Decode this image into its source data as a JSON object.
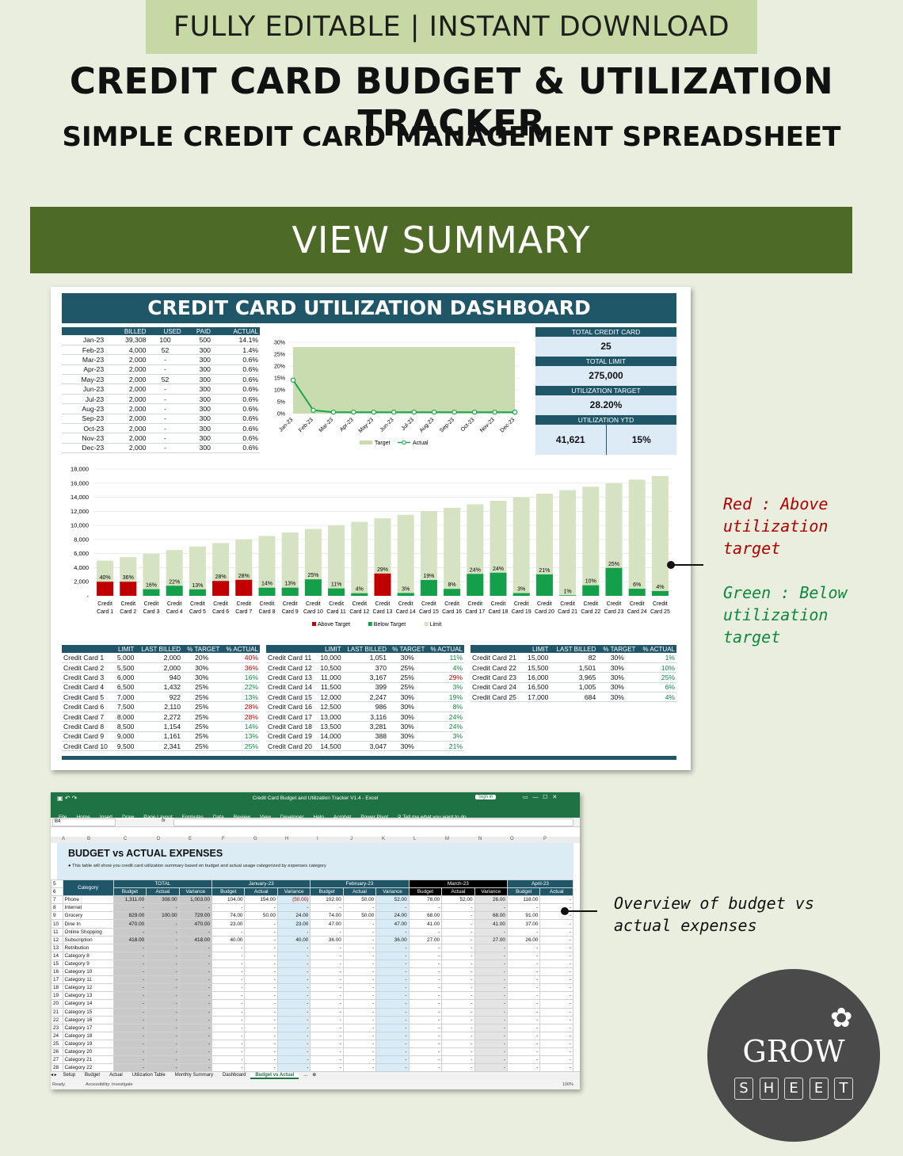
{
  "banner": {
    "top": "FULLY EDITABLE | INSTANT DOWNLOAD",
    "title": "CREDIT CARD BUDGET & UTILIZATION TRACKER",
    "subtitle": "SIMPLE CREDIT CARD MANAGEMENT SPREADSHEET",
    "section": "VIEW SUMMARY"
  },
  "dashboard": {
    "title": "CREDIT CARD UTILIZATION DASHBOARD",
    "monthly_headers": [
      "",
      "BILLED",
      "USED",
      "PAID",
      "ACTUAL"
    ],
    "monthly": [
      [
        "Jan-23",
        "39,308",
        "100",
        "500",
        "14.1%"
      ],
      [
        "Feb-23",
        "4,000",
        "52",
        "300",
        "1.4%"
      ],
      [
        "Mar-23",
        "2,000",
        "-",
        "300",
        "0.6%"
      ],
      [
        "Apr-23",
        "2,000",
        "-",
        "300",
        "0.6%"
      ],
      [
        "May-23",
        "2,000",
        "52",
        "300",
        "0.6%"
      ],
      [
        "Jun-23",
        "2,000",
        "-",
        "300",
        "0.6%"
      ],
      [
        "Jul-23",
        "2,000",
        "-",
        "300",
        "0.6%"
      ],
      [
        "Aug-23",
        "2,000",
        "-",
        "300",
        "0.6%"
      ],
      [
        "Sep-23",
        "2,000",
        "-",
        "300",
        "0.6%"
      ],
      [
        "Oct-23",
        "2,000",
        "-",
        "300",
        "0.6%"
      ],
      [
        "Nov-23",
        "2,000",
        "-",
        "300",
        "0.6%"
      ],
      [
        "Dec-23",
        "2,000",
        "-",
        "300",
        "0.6%"
      ]
    ],
    "kpi": {
      "total_card_label": "TOTAL CREDIT CARD",
      "total_card": "25",
      "total_limit_label": "TOTAL LIMIT",
      "total_limit": "275,000",
      "target_label": "UTILIZATION TARGET",
      "target": "28.20%",
      "ytd_label": "UTILIZATION YTD",
      "ytd_amount": "41,621",
      "ytd_pct": "15%"
    },
    "card_headers": [
      "",
      "LIMIT",
      "LAST BILLED",
      "% TARGET",
      "% ACTUAL"
    ],
    "cards": [
      [
        "Credit Card 1",
        "5,000",
        "2,000",
        "20%",
        "40%",
        "red"
      ],
      [
        "Credit Card 2",
        "5,500",
        "2,000",
        "30%",
        "36%",
        "red"
      ],
      [
        "Credit Card 3",
        "6,000",
        "940",
        "30%",
        "16%",
        "green"
      ],
      [
        "Credit Card 4",
        "6,500",
        "1,432",
        "25%",
        "22%",
        "green"
      ],
      [
        "Credit Card 5",
        "7,000",
        "922",
        "25%",
        "13%",
        "green"
      ],
      [
        "Credit Card 6",
        "7,500",
        "2,110",
        "25%",
        "28%",
        "red"
      ],
      [
        "Credit Card 7",
        "8,000",
        "2,272",
        "25%",
        "28%",
        "red"
      ],
      [
        "Credit Card 8",
        "8,500",
        "1,154",
        "25%",
        "14%",
        "green"
      ],
      [
        "Credit Card 9",
        "9,000",
        "1,161",
        "25%",
        "13%",
        "green"
      ],
      [
        "Credit Card 10",
        "9,500",
        "2,341",
        "25%",
        "25%",
        "green"
      ],
      [
        "Credit Card 11",
        "10,000",
        "1,051",
        "30%",
        "11%",
        "green"
      ],
      [
        "Credit Card 12",
        "10,500",
        "370",
        "25%",
        "4%",
        "green"
      ],
      [
        "Credit Card 13",
        "11,000",
        "3,167",
        "25%",
        "29%",
        "red"
      ],
      [
        "Credit Card 14",
        "11,500",
        "399",
        "25%",
        "3%",
        "green"
      ],
      [
        "Credit Card 15",
        "12,000",
        "2,247",
        "30%",
        "19%",
        "green"
      ],
      [
        "Credit Card 16",
        "12,500",
        "986",
        "30%",
        "8%",
        "green"
      ],
      [
        "Credit Card 17",
        "13,000",
        "3,116",
        "30%",
        "24%",
        "green"
      ],
      [
        "Credit Card 18",
        "13,500",
        "3,281",
        "30%",
        "24%",
        "green"
      ],
      [
        "Credit Card 19",
        "14,000",
        "388",
        "30%",
        "3%",
        "green"
      ],
      [
        "Credit Card 20",
        "14,500",
        "3,047",
        "30%",
        "21%",
        "green"
      ],
      [
        "Credit Card 21",
        "15,000",
        "82",
        "30%",
        "1%",
        "green"
      ],
      [
        "Credit Card 22",
        "15,500",
        "1,501",
        "30%",
        "10%",
        "green"
      ],
      [
        "Credit Card 23",
        "16,000",
        "3,965",
        "30%",
        "25%",
        "green"
      ],
      [
        "Credit Card 24",
        "16,500",
        "1,005",
        "30%",
        "6%",
        "green"
      ],
      [
        "Credit Card 25",
        "17,000",
        "684",
        "30%",
        "4%",
        "green"
      ]
    ]
  },
  "chart_data": [
    {
      "type": "line",
      "x": [
        "Jan-23",
        "Feb-23",
        "Mar-23",
        "Apr-23",
        "May-23",
        "Jun-23",
        "Jul-23",
        "Aug-23",
        "Sep-23",
        "Oct-23",
        "Nov-23",
        "Dec-23"
      ],
      "series": [
        {
          "name": "Target",
          "type": "area",
          "values": [
            28,
            28,
            28,
            28,
            28,
            28,
            28,
            28,
            28,
            28,
            28,
            28
          ],
          "color": "#c9dcb0"
        },
        {
          "name": "Actual",
          "values": [
            14.1,
            1.4,
            0.6,
            0.6,
            0.6,
            0.6,
            0.6,
            0.6,
            0.6,
            0.6,
            0.6,
            0.6
          ],
          "color": "#1aa84a"
        }
      ],
      "yticks": [
        "0%",
        "5%",
        "10%",
        "15%",
        "20%",
        "25%",
        "30%"
      ],
      "ylim": [
        0,
        30
      ],
      "legend": "bottom"
    },
    {
      "type": "bar",
      "categories": [
        "Credit Card 1",
        "Credit Card 2",
        "Credit Card 3",
        "Credit Card 4",
        "Credit Card 5",
        "Credit Card 6",
        "Credit Card 7",
        "Credit Card 8",
        "Credit Card 9",
        "Credit Card 10",
        "Credit Card 11",
        "Credit Card 12",
        "Credit Card 13",
        "Credit Card 14",
        "Credit Card 15",
        "Credit Card 16",
        "Credit Card 17",
        "Credit Card 18",
        "Credit Card 19",
        "Credit Card 20",
        "Credit Card 21",
        "Credit Card 22",
        "Credit Card 23",
        "Credit Card 24",
        "Credit Card 25"
      ],
      "limit": [
        5000,
        5500,
        6000,
        6500,
        7000,
        7500,
        8000,
        8500,
        9000,
        9500,
        10000,
        10500,
        11000,
        11500,
        12000,
        12500,
        13000,
        13500,
        14000,
        14500,
        15000,
        15500,
        16000,
        16500,
        17000
      ],
      "billed": [
        2000,
        2000,
        940,
        1432,
        922,
        2110,
        2272,
        1154,
        1161,
        2341,
        1051,
        370,
        3167,
        399,
        2247,
        986,
        3116,
        3281,
        388,
        3047,
        82,
        1501,
        3965,
        1005,
        684
      ],
      "labels": [
        "40%",
        "36%",
        "16%",
        "22%",
        "13%",
        "28%",
        "28%",
        "14%",
        "13%",
        "25%",
        "11%",
        "4%",
        "29%",
        "3%",
        "19%",
        "8%",
        "24%",
        "24%",
        "3%",
        "21%",
        "1%",
        "10%",
        "25%",
        "6%",
        "4%"
      ],
      "above": [
        true,
        true,
        false,
        false,
        false,
        true,
        true,
        false,
        false,
        false,
        false,
        false,
        true,
        false,
        false,
        false,
        false,
        false,
        false,
        false,
        false,
        false,
        false,
        false,
        false
      ],
      "series_names": [
        "Above Target",
        "Below Target",
        "Limit"
      ],
      "colors": {
        "above": "#c00000",
        "below": "#14a04a",
        "limit": "#d6e3c2"
      },
      "yticks": [
        "-",
        "2,000",
        "4,000",
        "6,000",
        "8,000",
        "10,000",
        "12,000",
        "14,000",
        "16,000",
        "18,000"
      ],
      "ylim": [
        0,
        18000
      ],
      "legend": "bottom"
    }
  ],
  "excel": {
    "window_title": "Credit Card Budget and Utilization Tracker V1.4 - Excel",
    "sign_in": "Sign in",
    "tabs": [
      "File",
      "Home",
      "Insert",
      "Draw",
      "Page Layout",
      "Formulas",
      "Data",
      "Review",
      "View",
      "Developer",
      "Help",
      "Acrobat",
      "Power Pivot"
    ],
    "tell_me": "Tell me what you want to do",
    "name_box": "B4",
    "fx": "fx",
    "col_letters": [
      "A",
      "B",
      "C",
      "D",
      "E",
      "F",
      "G",
      "H",
      "I",
      "J",
      "K",
      "L",
      "M",
      "N",
      "O",
      "P"
    ],
    "sheet_title": "BUDGET vs ACTUAL EXPENSES",
    "sheet_note": "● This table will show you credit card utilization summary based on budget and actual usage categorized by expenses category",
    "group_headers": [
      "Category",
      "TOTAL",
      "January-23",
      "February-23",
      "March-23",
      "April-23"
    ],
    "sub_headers": [
      "Budget",
      "Actual",
      "Variance",
      "Budget",
      "Actual",
      "Variance",
      "Budget",
      "Actual",
      "Variance",
      "Budget",
      "Actual",
      "Variance",
      "Budget",
      "Actual"
    ],
    "rows": [
      [
        "7",
        "Phone",
        "1,311.00",
        "308.00",
        "1,003.00",
        "104.00",
        "154.00",
        "(50.00)",
        "102.00",
        "50.00",
        "52.00",
        "78.00",
        "52.00",
        "26.00",
        "118.00",
        "-"
      ],
      [
        "8",
        "Internet",
        "-",
        "-",
        "-",
        "-",
        "-",
        "-",
        "-",
        "-",
        "-",
        "-",
        "-",
        "-",
        "-",
        "-"
      ],
      [
        "9",
        "Grocery",
        "829.00",
        "100.00",
        "729.00",
        "74.00",
        "50.00",
        "24.00",
        "74.00",
        "50.00",
        "24.00",
        "68.00",
        "-",
        "68.00",
        "91.00",
        "-"
      ],
      [
        "10",
        "Dine In",
        "470.00",
        "-",
        "470.00",
        "23.00",
        "-",
        "23.00",
        "47.00",
        "-",
        "47.00",
        "41.00",
        "-",
        "41.00",
        "37.00",
        "-"
      ],
      [
        "11",
        "Online Shopping",
        "-",
        "-",
        "-",
        "-",
        "-",
        "-",
        "-",
        "-",
        "-",
        "-",
        "-",
        "-",
        "-",
        "-"
      ],
      [
        "12",
        "Subscription",
        "418.00",
        "-",
        "418.00",
        "40.00",
        "-",
        "40.00",
        "36.00",
        "-",
        "36.00",
        "27.00",
        "-",
        "27.00",
        "26.00",
        "-"
      ],
      [
        "13",
        "Retribution",
        "-",
        "-",
        "-",
        "-",
        "-",
        "-",
        "-",
        "-",
        "-",
        "-",
        "-",
        "-",
        "-",
        "-"
      ],
      [
        "14",
        "Category 8",
        "-",
        "-",
        "-",
        "-",
        "-",
        "-",
        "-",
        "-",
        "-",
        "-",
        "-",
        "-",
        "-",
        "-"
      ],
      [
        "15",
        "Category 9",
        "-",
        "-",
        "-",
        "-",
        "-",
        "-",
        "-",
        "-",
        "-",
        "-",
        "-",
        "-",
        "-",
        "-"
      ],
      [
        "16",
        "Category 10",
        "-",
        "-",
        "-",
        "-",
        "-",
        "-",
        "-",
        "-",
        "-",
        "-",
        "-",
        "-",
        "-",
        "-"
      ],
      [
        "17",
        "Category 11",
        "-",
        "-",
        "-",
        "-",
        "-",
        "-",
        "-",
        "-",
        "-",
        "-",
        "-",
        "-",
        "-",
        "-"
      ],
      [
        "18",
        "Category 12",
        "-",
        "-",
        "-",
        "-",
        "-",
        "-",
        "-",
        "-",
        "-",
        "-",
        "-",
        "-",
        "-",
        "-"
      ],
      [
        "19",
        "Category 13",
        "-",
        "-",
        "-",
        "-",
        "-",
        "-",
        "-",
        "-",
        "-",
        "-",
        "-",
        "-",
        "-",
        "-"
      ],
      [
        "20",
        "Category 14",
        "-",
        "-",
        "-",
        "-",
        "-",
        "-",
        "-",
        "-",
        "-",
        "-",
        "-",
        "-",
        "-",
        "-"
      ],
      [
        "21",
        "Category 15",
        "-",
        "-",
        "-",
        "-",
        "-",
        "-",
        "-",
        "-",
        "-",
        "-",
        "-",
        "-",
        "-",
        "-"
      ],
      [
        "22",
        "Category 16",
        "-",
        "-",
        "-",
        "-",
        "-",
        "-",
        "-",
        "-",
        "-",
        "-",
        "-",
        "-",
        "-",
        "-"
      ],
      [
        "23",
        "Category 17",
        "-",
        "-",
        "-",
        "-",
        "-",
        "-",
        "-",
        "-",
        "-",
        "-",
        "-",
        "-",
        "-",
        "-"
      ],
      [
        "24",
        "Category 18",
        "-",
        "-",
        "-",
        "-",
        "-",
        "-",
        "-",
        "-",
        "-",
        "-",
        "-",
        "-",
        "-",
        "-"
      ],
      [
        "25",
        "Category 19",
        "-",
        "-",
        "-",
        "-",
        "-",
        "-",
        "-",
        "-",
        "-",
        "-",
        "-",
        "-",
        "-",
        "-"
      ],
      [
        "26",
        "Category 20",
        "-",
        "-",
        "-",
        "-",
        "-",
        "-",
        "-",
        "-",
        "-",
        "-",
        "-",
        "-",
        "-",
        "-"
      ],
      [
        "27",
        "Category 21",
        "-",
        "-",
        "-",
        "-",
        "-",
        "-",
        "-",
        "-",
        "-",
        "-",
        "-",
        "-",
        "-",
        "-"
      ],
      [
        "28",
        "Category 22",
        "-",
        "-",
        "-",
        "-",
        "-",
        "-",
        "-",
        "-",
        "-",
        "-",
        "-",
        "-",
        "-",
        "-"
      ]
    ],
    "sheet_tabs": [
      "Setup",
      "Budget",
      "Actual",
      "Utilization Table",
      "Monthly Summary",
      "Dashboard",
      "Budget vs Actual",
      "..."
    ],
    "active_tab": "Budget vs Actual",
    "status": "Ready",
    "accessibility": "Accessibility: Investigate",
    "zoom": "100%"
  },
  "annotations": {
    "red": "Red : Above utilization target",
    "green": "Green : Below utilization target",
    "overview": "Overview of budget vs actual expenses"
  },
  "logo": {
    "top": "GROW",
    "bottom": "SHEET"
  }
}
